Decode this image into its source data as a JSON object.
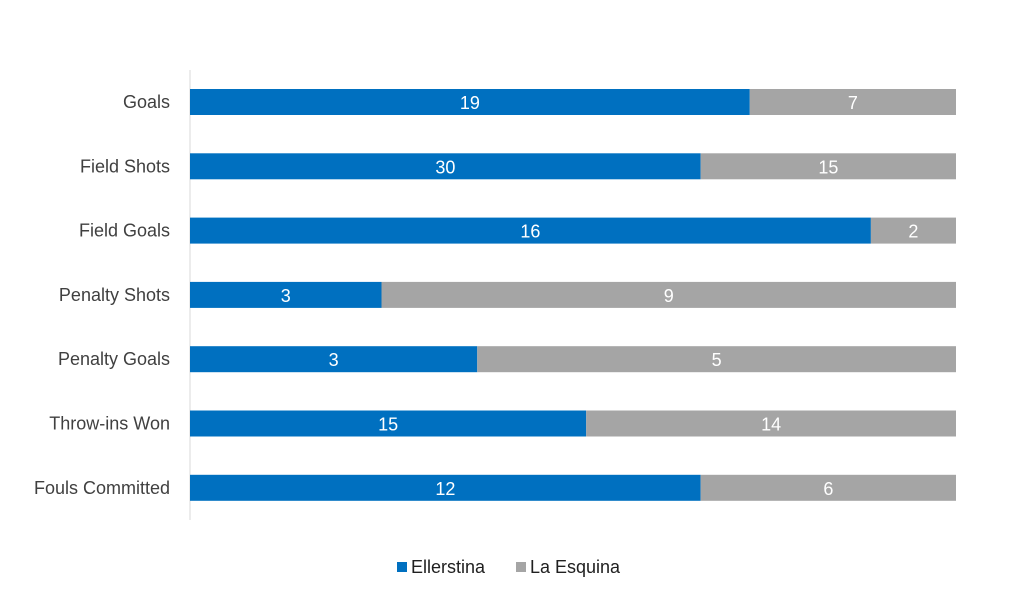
{
  "chart_data": {
    "type": "bar",
    "orientation": "horizontal",
    "stacking": "percent",
    "categories": [
      "Goals",
      "Field Shots",
      "Field Goals",
      "Penalty Shots",
      "Penalty Goals",
      "Throw-ins Won",
      "Fouls Committed"
    ],
    "series": [
      {
        "name": "Ellerstina",
        "color": "#0070C0",
        "values": [
          19,
          30,
          16,
          3,
          3,
          15,
          12
        ]
      },
      {
        "name": "La Esquina",
        "color": "#A5A5A5",
        "values": [
          7,
          15,
          2,
          9,
          5,
          14,
          6
        ]
      }
    ],
    "title": "",
    "xlabel": "",
    "ylabel": "",
    "grid": false,
    "legend": "bottom"
  }
}
